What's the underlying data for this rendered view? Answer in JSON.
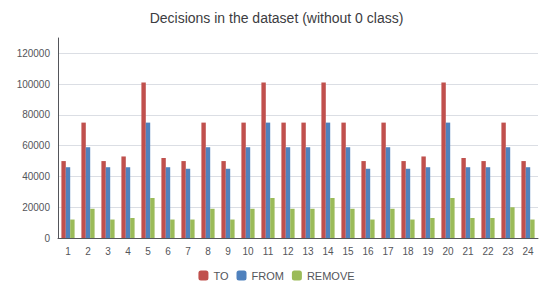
{
  "chart_data": {
    "type": "bar",
    "title": "Decisions in the dataset (without 0 class)",
    "categories": [
      1,
      2,
      3,
      4,
      5,
      6,
      7,
      8,
      9,
      10,
      11,
      12,
      13,
      14,
      15,
      16,
      17,
      18,
      19,
      20,
      21,
      22,
      23,
      24
    ],
    "series": [
      {
        "name": "TO",
        "color": "#C0504D",
        "values": [
          50000,
          75000,
          50000,
          53000,
          101000,
          52000,
          50000,
          75000,
          50000,
          75000,
          101000,
          75000,
          75000,
          101000,
          75000,
          50000,
          75000,
          50000,
          53000,
          101000,
          52000,
          50000,
          75000,
          50000
        ]
      },
      {
        "name": "FROM",
        "color": "#4F81BD",
        "values": [
          46000,
          59000,
          46000,
          46000,
          75000,
          46000,
          45000,
          59000,
          45000,
          59000,
          75000,
          59000,
          59000,
          75000,
          59000,
          45000,
          59000,
          45000,
          46000,
          75000,
          46000,
          46000,
          59000,
          46000
        ]
      },
      {
        "name": "REMOVE",
        "color": "#9BBB59",
        "values": [
          12000,
          19000,
          12000,
          13000,
          26000,
          12000,
          12000,
          19000,
          12000,
          19000,
          26000,
          19000,
          19000,
          26000,
          19000,
          12000,
          19000,
          12000,
          13000,
          26000,
          13000,
          13000,
          20000,
          12000
        ]
      }
    ],
    "ylim": [
      0,
      130000
    ],
    "yticks": [
      0,
      20000,
      40000,
      60000,
      80000,
      100000,
      120000
    ],
    "grid": true,
    "legend": "bottom"
  }
}
